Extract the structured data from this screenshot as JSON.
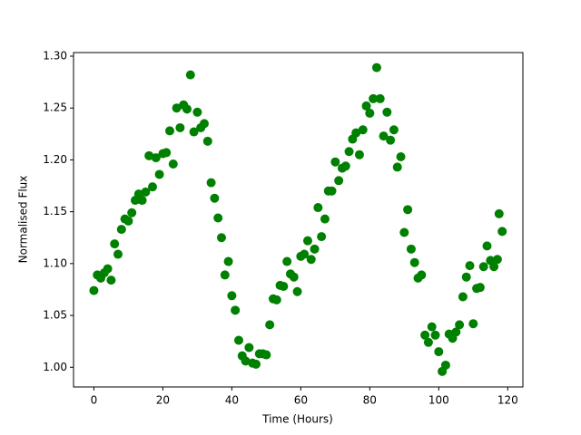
{
  "chart_data": {
    "type": "scatter",
    "xlabel": "Time (Hours)",
    "ylabel": "Normalised Flux",
    "color": "#008000",
    "x": [
      0,
      1,
      2,
      3,
      4,
      5,
      6,
      7,
      8,
      9,
      10,
      11,
      12,
      13,
      14,
      15,
      16,
      17,
      18,
      19,
      20,
      21,
      22,
      23,
      24,
      25,
      26,
      27,
      28,
      29,
      30,
      31,
      32,
      33,
      34,
      35,
      36,
      37,
      38,
      39,
      40,
      41,
      42,
      43,
      44,
      45,
      46,
      47,
      48,
      49,
      50,
      51,
      52,
      53,
      54,
      55,
      56,
      57,
      58,
      59,
      60,
      61,
      62,
      63,
      64,
      65,
      66,
      67,
      68,
      69,
      70,
      71,
      72,
      73,
      74,
      75,
      76,
      77,
      78,
      79,
      80,
      81,
      82,
      83,
      84,
      85,
      86,
      87,
      88,
      89,
      90,
      91,
      92,
      93,
      94,
      95,
      96,
      97,
      98,
      99,
      100,
      101,
      102,
      103,
      104,
      105,
      106,
      107,
      108,
      109,
      110,
      111,
      112,
      113,
      114,
      115,
      116,
      117,
      117.5,
      118.4
    ],
    "y": [
      1.074,
      1.089,
      1.086,
      1.091,
      1.095,
      1.084,
      1.119,
      1.109,
      1.133,
      1.143,
      1.141,
      1.149,
      1.161,
      1.167,
      1.161,
      1.169,
      1.204,
      1.174,
      1.202,
      1.186,
      1.206,
      1.207,
      1.228,
      1.196,
      1.25,
      1.231,
      1.253,
      1.249,
      1.282,
      1.227,
      1.246,
      1.231,
      1.235,
      1.218,
      1.178,
      1.163,
      1.144,
      1.125,
      1.089,
      1.102,
      1.069,
      1.055,
      1.026,
      1.011,
      1.006,
      1.019,
      1.004,
      1.003,
      1.013,
      1.013,
      1.012,
      1.041,
      1.066,
      1.065,
      1.079,
      1.078,
      1.102,
      1.09,
      1.087,
      1.073,
      1.107,
      1.109,
      1.122,
      1.104,
      1.114,
      1.154,
      1.126,
      1.143,
      1.17,
      1.17,
      1.198,
      1.18,
      1.192,
      1.194,
      1.208,
      1.22,
      1.226,
      1.205,
      1.229,
      1.252,
      1.245,
      1.259,
      1.289,
      1.259,
      1.223,
      1.246,
      1.219,
      1.229,
      1.193,
      1.203,
      1.13,
      1.152,
      1.114,
      1.101,
      1.086,
      1.089,
      1.031,
      1.024,
      1.039,
      1.031,
      1.015,
      0.996,
      1.002,
      1.032,
      1.028,
      1.034,
      1.041,
      1.068,
      1.087,
      1.098,
      1.042,
      1.076,
      1.077,
      1.097,
      1.117,
      1.103,
      1.097,
      1.104,
      1.148,
      1.131
    ],
    "xlim": [
      -5.9,
      124.4
    ],
    "ylim": [
      0.981,
      1.3035
    ],
    "xticks": [
      0,
      20,
      40,
      60,
      80,
      100,
      120
    ],
    "yticks": [
      {
        "value": 1.0,
        "label": "1.00"
      },
      {
        "value": 1.05,
        "label": "1.05"
      },
      {
        "value": 1.1,
        "label": "1.10"
      },
      {
        "value": 1.15,
        "label": "1.15"
      },
      {
        "value": 1.2,
        "label": "1.20"
      },
      {
        "value": 1.25,
        "label": "1.25"
      },
      {
        "value": 1.3,
        "label": "1.30"
      }
    ]
  }
}
